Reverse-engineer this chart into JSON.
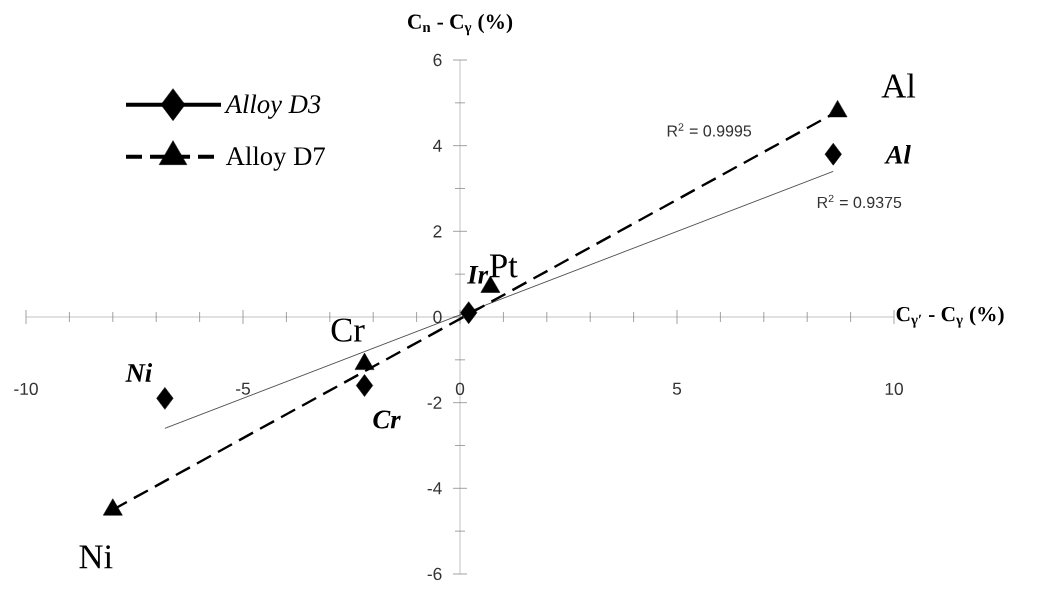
{
  "chart_data": {
    "type": "scatter",
    "xlabel": "C$_{γ′}$ - C$_{γ}$ (%)",
    "ylabel": "C$_{n}$ - C$_{γ}$ (%)",
    "xlim": [
      -10,
      10
    ],
    "ylim": [
      -6,
      6
    ],
    "xticks": [
      -10,
      -5,
      0,
      5,
      10
    ],
    "yticks": [
      -6,
      -4,
      -2,
      0,
      2,
      4,
      6
    ],
    "legend": "top left",
    "series": [
      {
        "name": "Alloy D3",
        "color": "#000000",
        "marker": "diamond",
        "line_style": "solid",
        "x": [
          -6.8,
          -2.2,
          0.2,
          8.6
        ],
        "values": [
          -1.9,
          -1.6,
          0.1,
          3.8
        ]
      },
      {
        "name": "Alloy D7",
        "color": "#000000",
        "marker": "triangle",
        "line_style": "dashed",
        "x": [
          -8.0,
          -2.2,
          0.7,
          8.7
        ],
        "values": [
          -4.5,
          -1.1,
          0.7,
          4.8
        ]
      },
      {
        "type": "line",
        "color": "#000000",
        "line_style": "solid",
        "x": [
          -6.8,
          8.6
        ],
        "values": [
          -2.6,
          3.4
        ]
      },
      {
        "type": "line",
        "color": "#000000",
        "line_style": "dashed",
        "x": [
          -8.0,
          8.7
        ],
        "values": [
          -4.5,
          4.8
        ]
      }
    ],
    "annotations": [
      {
        "text": "Ni",
        "x": -6.8,
        "y": -1.9
      },
      {
        "text": "Cr",
        "x": -2.2,
        "y": -1.6
      },
      {
        "text": "Ir",
        "x": 0.2,
        "y": 0.1
      },
      {
        "text": "Al",
        "x": 8.6,
        "y": 3.8
      },
      {
        "text": "Ni",
        "x": -8.0,
        "y": -4.5
      },
      {
        "text": "Cr",
        "x": -2.2,
        "y": -1.1
      },
      {
        "text": "Pt",
        "x": 0.7,
        "y": 0.7
      },
      {
        "text": "Al",
        "x": 8.7,
        "y": 4.8
      },
      "R$^{2}$ = 0.9995",
      {
        "text": "R$^{2}$ = 0.9375",
        "x": 8.6,
        "y": 3.4
      }
    ]
  }
}
